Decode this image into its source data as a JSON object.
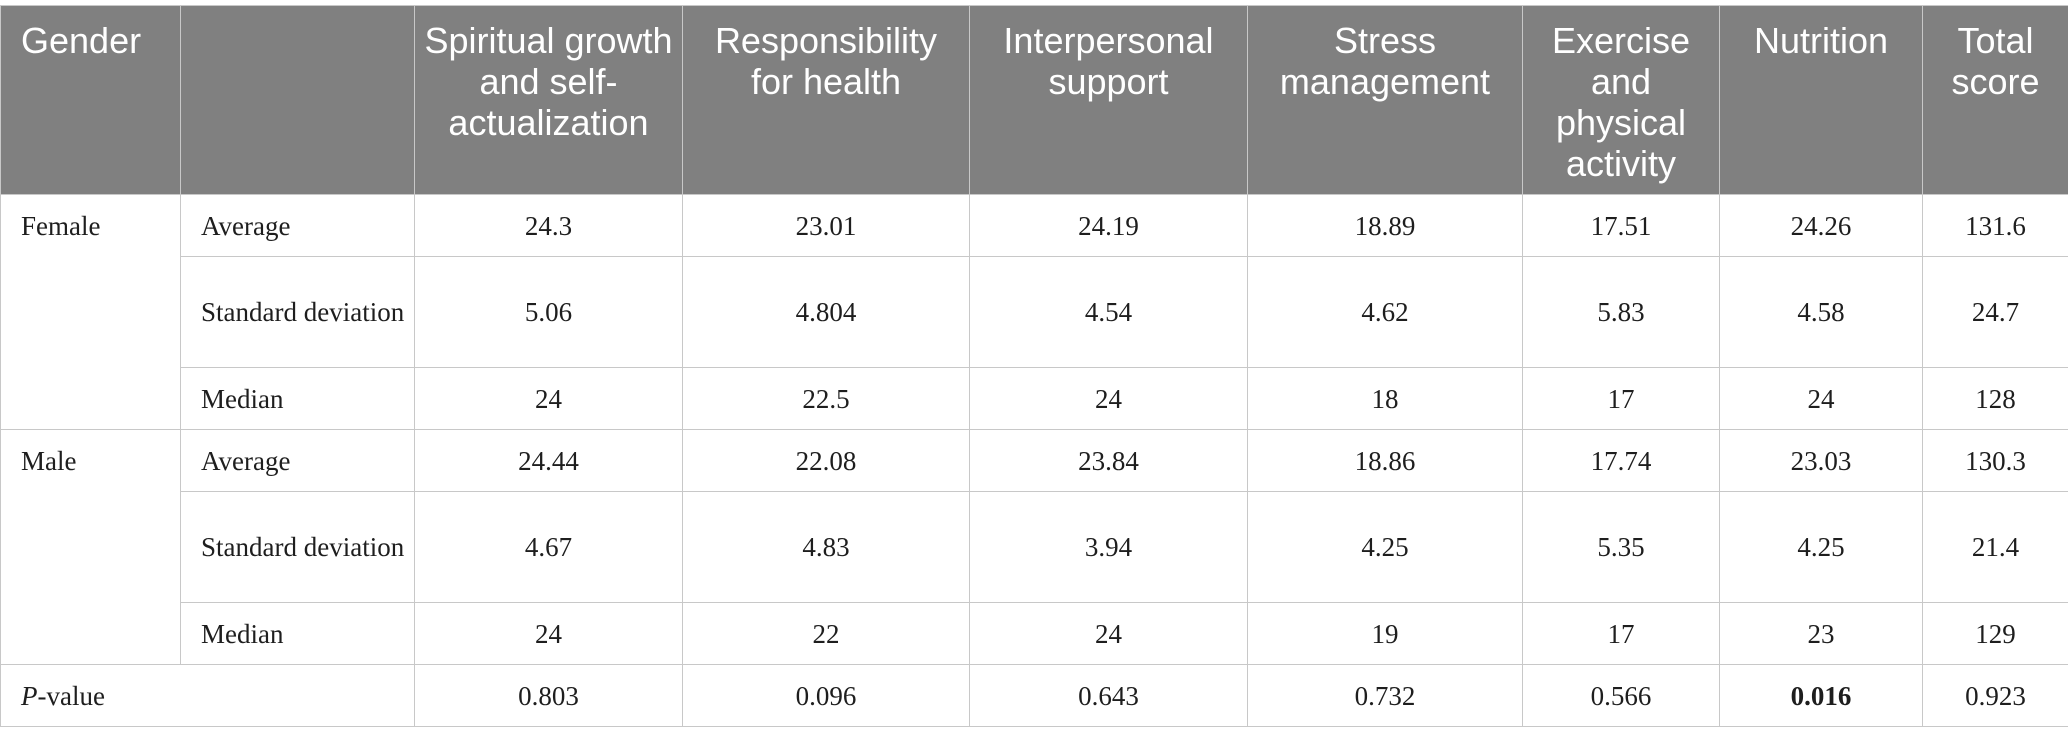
{
  "table": {
    "headers": [
      "Gender",
      "",
      "Spiritual growth and self-actualization",
      "Responsibility for health",
      "Interpersonal support",
      "Stress management",
      "Exercise and physical activity",
      "Nutrition",
      "Total score"
    ],
    "groups": [
      {
        "gender": "Female",
        "rows": [
          {
            "stat": "Average",
            "values": [
              "24.3",
              "23.01",
              "24.19",
              "18.89",
              "17.51",
              "24.26",
              "131.6"
            ]
          },
          {
            "stat": "Standard deviation",
            "values": [
              "5.06",
              "4.804",
              "4.54",
              "4.62",
              "5.83",
              "4.58",
              "24.7"
            ]
          },
          {
            "stat": "Median",
            "values": [
              "24",
              "22.5",
              "24",
              "18",
              "17",
              "24",
              "128"
            ]
          }
        ]
      },
      {
        "gender": "Male",
        "rows": [
          {
            "stat": "Average",
            "values": [
              "24.44",
              "22.08",
              "23.84",
              "18.86",
              "17.74",
              "23.03",
              "130.3"
            ]
          },
          {
            "stat": "Standard deviation",
            "values": [
              "4.67",
              "4.83",
              "3.94",
              "4.25",
              "5.35",
              "4.25",
              "21.4"
            ]
          },
          {
            "stat": "Median",
            "values": [
              "24",
              "22",
              "24",
              "19",
              "17",
              "23",
              "129"
            ]
          }
        ]
      }
    ],
    "pvalue": {
      "label_italic": "P",
      "label_rest": "-value",
      "values": [
        "0.803",
        "0.096",
        "0.643",
        "0.732",
        "0.566",
        "0.016",
        "0.923"
      ],
      "bold_index": 5
    }
  }
}
